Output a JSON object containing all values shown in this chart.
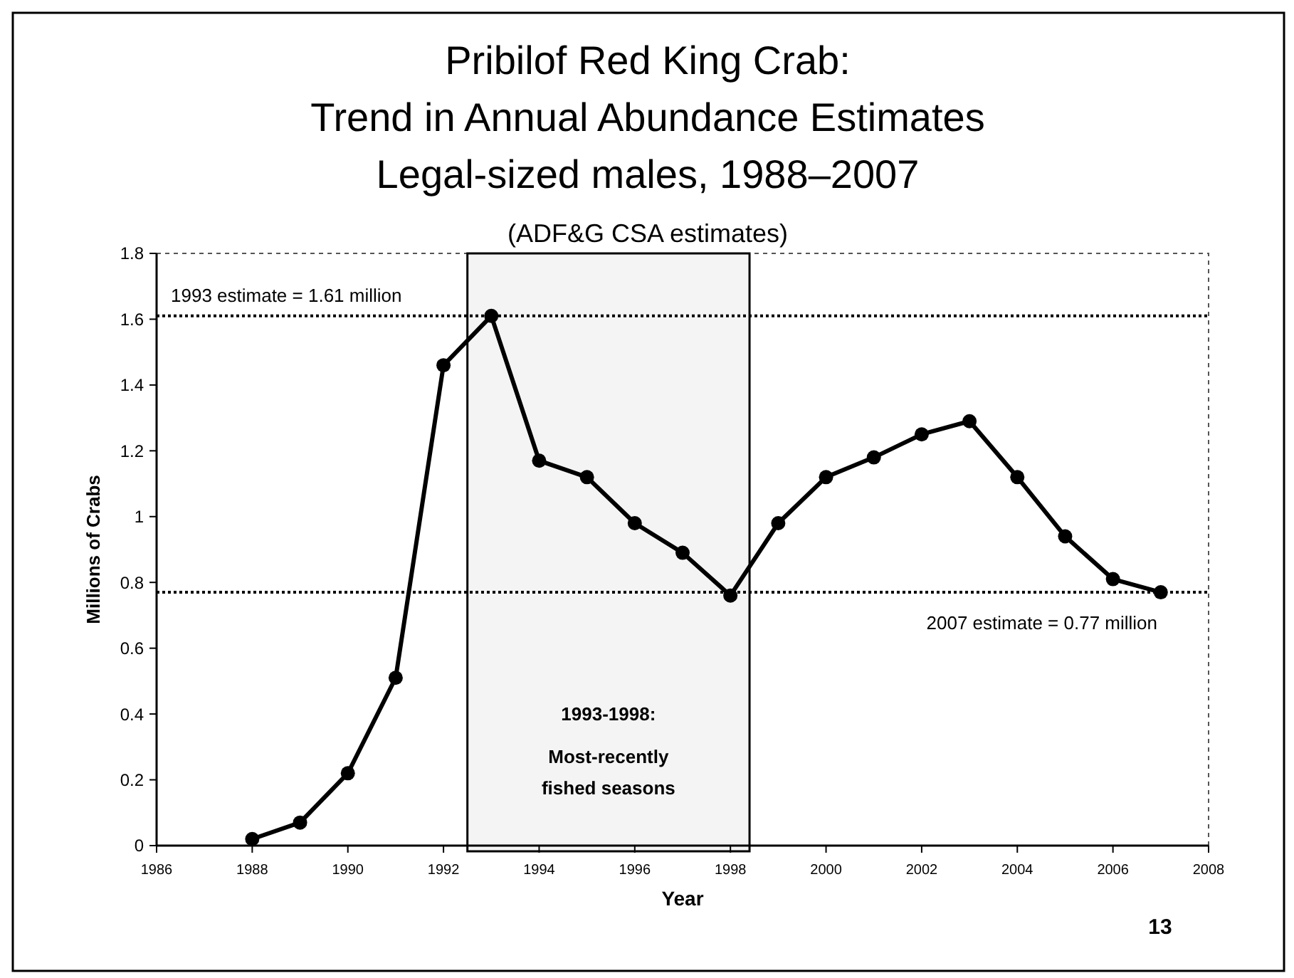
{
  "chart_data": {
    "type": "line",
    "title": "Pribilof Red King Crab:\nTrend in Annual Abundance Estimates\nLegal-sized males, 1988–2007",
    "subtitle": "(ADF&G CSA estimates)",
    "xlabel": "Year",
    "ylabel": "Millions of Crabs",
    "x": [
      1988,
      1989,
      1990,
      1991,
      1992,
      1993,
      1994,
      1995,
      1996,
      1997,
      1998,
      1999,
      2000,
      2001,
      2002,
      2003,
      2004,
      2005,
      2006,
      2007
    ],
    "series": [
      {
        "color": "#000000",
        "values": [
          0.02,
          0.07,
          0.22,
          0.51,
          1.46,
          1.61,
          1.17,
          1.12,
          0.98,
          0.89,
          0.76,
          0.98,
          1.12,
          1.18,
          1.25,
          1.29,
          1.12,
          0.94,
          0.81,
          0.77
        ]
      }
    ],
    "xlim": [
      1986,
      2008
    ],
    "xticks": [
      1986,
      1988,
      1990,
      1992,
      1994,
      1996,
      1998,
      2000,
      2002,
      2004,
      2006,
      2008
    ],
    "ylim": [
      0,
      1.8
    ],
    "yticks": [
      0,
      0.2,
      0.4,
      0.6,
      0.8,
      1,
      1.2,
      1.4,
      1.6,
      1.8
    ],
    "ref_lines": [
      {
        "axis": "y",
        "value": 1.61,
        "label": "1993 estimate = 1.61 million",
        "line_style": "dotted"
      },
      {
        "axis": "y",
        "value": 0.77,
        "label": "2007 estimate = 0.77 million",
        "line_style": "dotted"
      }
    ],
    "bands": [
      {
        "axis": "x",
        "from": 1992.5,
        "to": 1998.4,
        "label": "1993-1998:\nMost-recently\nfished seasons"
      }
    ],
    "annotations": [
      "13"
    ],
    "marker": "circle",
    "line_style": "solid"
  }
}
